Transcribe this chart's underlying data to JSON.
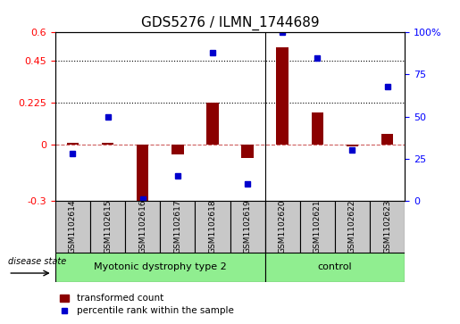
{
  "title": "GDS5276 / ILMN_1744689",
  "samples": [
    "GSM1102614",
    "GSM1102615",
    "GSM1102616",
    "GSM1102617",
    "GSM1102618",
    "GSM1102619",
    "GSM1102620",
    "GSM1102621",
    "GSM1102622",
    "GSM1102623"
  ],
  "transformed_count": [
    0.01,
    0.01,
    -0.31,
    -0.05,
    0.225,
    -0.07,
    0.52,
    0.17,
    -0.01,
    0.06
  ],
  "percentile_rank": [
    28,
    50,
    1,
    15,
    88,
    10,
    100,
    85,
    30,
    68
  ],
  "groups": [
    {
      "label": "Myotonic dystrophy type 2",
      "start": 0,
      "end": 6,
      "color": "#90EE90"
    },
    {
      "label": "control",
      "start": 6,
      "end": 10,
      "color": "#90EE90"
    }
  ],
  "group_separator": 5.5,
  "ylim_left": [
    -0.3,
    0.6
  ],
  "ylim_right": [
    0,
    100
  ],
  "yticks_left": [
    -0.3,
    0.0,
    0.225,
    0.45,
    0.6
  ],
  "yticks_right": [
    0,
    25,
    50,
    75,
    100
  ],
  "ytick_labels_left": [
    "-0.3",
    "0",
    "0.225",
    "0.45",
    "0.6"
  ],
  "ytick_labels_right": [
    "0",
    "25",
    "50",
    "75",
    "100%"
  ],
  "hlines": [
    0.225,
    0.45
  ],
  "bar_color": "#8B0000",
  "dot_color": "#0000CD",
  "zero_line_color": "#CD5C5C",
  "disease_state_label": "disease state",
  "legend_bar_label": "transformed count",
  "legend_dot_label": "percentile rank within the sample",
  "group_box_color": "#C8C8C8",
  "group_label_color": "#000000"
}
